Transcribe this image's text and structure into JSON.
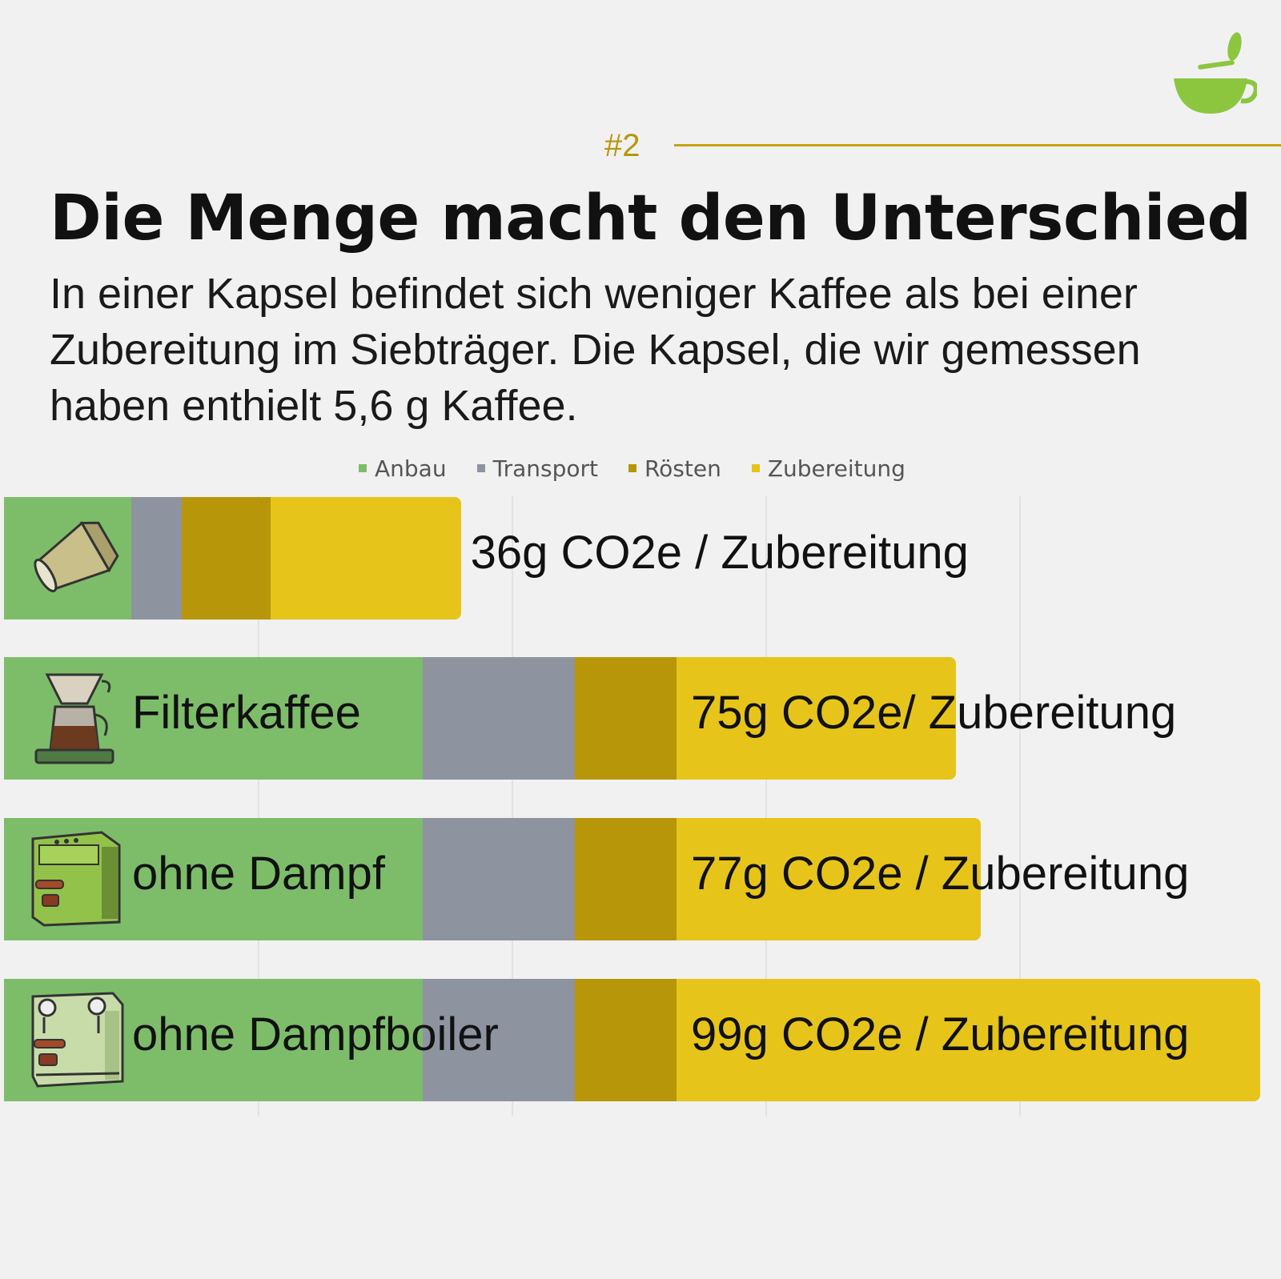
{
  "header": {
    "section_number": "#2",
    "title": "Die Menge macht den Unterschied",
    "subtitle": "In einer Kapsel befindet sich weniger Kaffee als bei einer Zubereitung im Siebträger. Die Kapsel, die wir gemessen haben enthielt 5,6 g Kaffee."
  },
  "colors": {
    "anbau": "#7dbd6a",
    "transport": "#8e93a0",
    "roesten": "#b8960a",
    "zubereitung": "#e6c41a",
    "accent": "#c9a20c",
    "logo": "#8cc63f"
  },
  "icons": [
    "coffee-cup-logo-icon",
    "coffee-capsule-icon",
    "filter-coffee-icon",
    "espresso-machine-icon",
    "dual-boiler-machine-icon"
  ],
  "chart_data": {
    "type": "bar",
    "orientation": "horizontal",
    "stacked": true,
    "title": "",
    "xlabel": "",
    "ylabel": "",
    "xlim": [
      0,
      100
    ],
    "grid": true,
    "legend": {
      "placement": "top-center",
      "entries": [
        "Anbau",
        "Transport",
        "Rösten",
        "Zubereitung"
      ]
    },
    "categories": [
      "",
      "Filterkaffee",
      "ohne Dampf",
      "ohne Dampfboiler"
    ],
    "series": [
      {
        "name": "Anbau",
        "values": [
          10,
          33,
          33,
          33
        ]
      },
      {
        "name": "Transport",
        "values": [
          4,
          12,
          12,
          12
        ]
      },
      {
        "name": "Rösten",
        "values": [
          7,
          8,
          8,
          8
        ]
      },
      {
        "name": "Zubereitung",
        "values": [
          15,
          22,
          24,
          46
        ]
      }
    ],
    "totals": [
      36,
      75,
      77,
      99
    ],
    "value_labels": [
      "36g CO2e / Zubereitung",
      "75g CO2e/ Zubereitung",
      "77g CO2e / Zubereitung",
      "99g CO2e / Zubereitung"
    ]
  }
}
